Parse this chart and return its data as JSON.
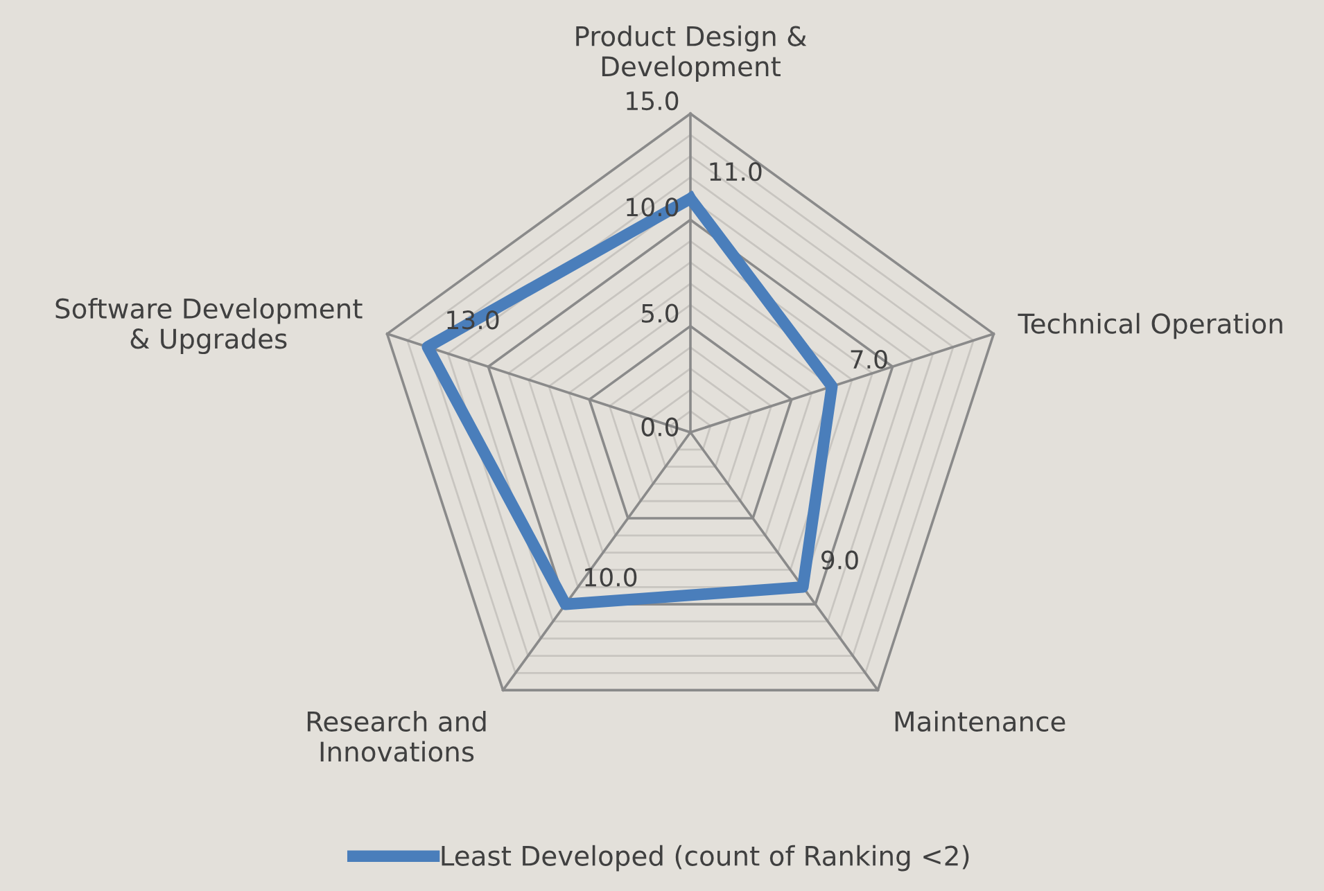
{
  "chart_data": {
    "type": "radar",
    "categories": [
      "Product Design &\nDevelopment",
      "Technical Operation",
      "Maintenance",
      "Research and\nInnovations",
      "Software Development\n& Upgrades"
    ],
    "series": [
      {
        "name": "Least Developed (count of Ranking <2)",
        "color": "#4a7ebb",
        "values": [
          11,
          7,
          9,
          10,
          13
        ],
        "value_labels": [
          "11.0",
          "7.0",
          "9.0",
          "10.0",
          "13.0"
        ]
      }
    ],
    "ylim": [
      0,
      15
    ],
    "yticks": [
      {
        "value": 0,
        "label": "0.0"
      },
      {
        "value": 5,
        "label": "5.0"
      },
      {
        "value": 10,
        "label": "10.0"
      },
      {
        "value": 15,
        "label": "15.0"
      }
    ],
    "grid": true,
    "legend": "bottom"
  }
}
